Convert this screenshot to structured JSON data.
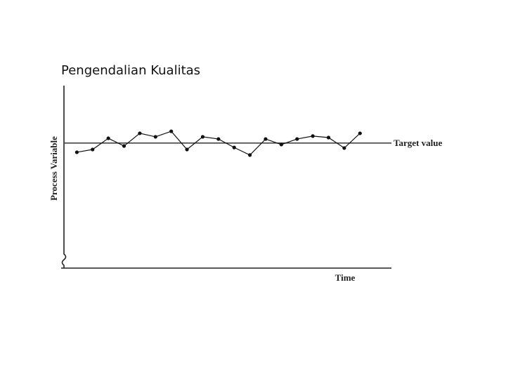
{
  "title": "Pengendalian Kualitas",
  "chart_data": {
    "type": "line",
    "x_label": "Time",
    "y_label": "Process Variable",
    "x": [
      1,
      2,
      3,
      4,
      5,
      6,
      7,
      8,
      9,
      10,
      11,
      12,
      13,
      14,
      15,
      16,
      17,
      18,
      19
    ],
    "series": [
      {
        "color": "#111111",
        "values": [
          63.0,
          64.5,
          70.6,
          66.4,
          73.3,
          71.4,
          74.4,
          64.5,
          71.4,
          70.2,
          65.6,
          61.5,
          70.2,
          67.2,
          70.2,
          71.8,
          71.0,
          65.3,
          73.3
        ]
      }
    ],
    "xlim": [
      0,
      21
    ],
    "ylim": [
      0,
      100
    ],
    "annotations": [
      {
        "label": "Target value",
        "value": 68
      }
    ]
  }
}
